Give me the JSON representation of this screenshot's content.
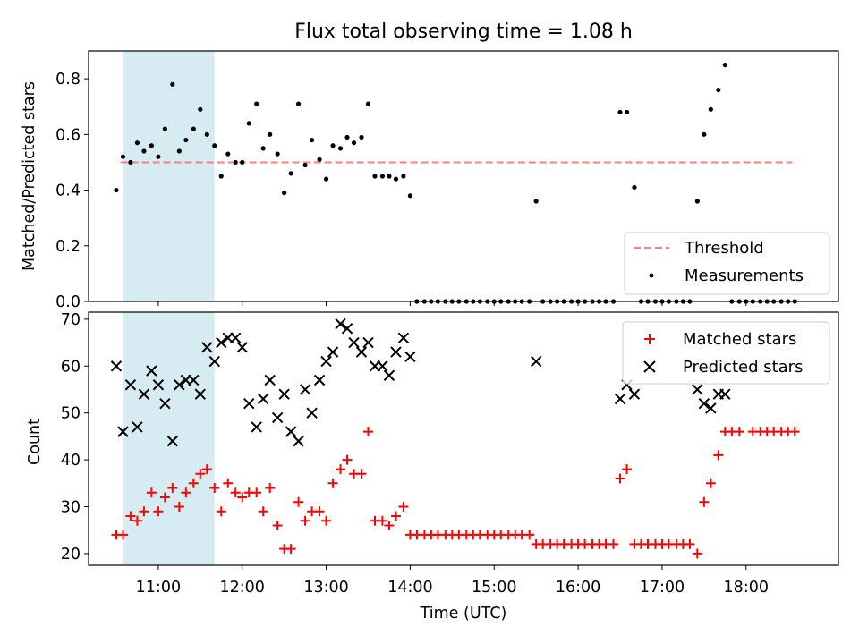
{
  "chart_data": {
    "type": "scatter",
    "title": "Flux total observing time = 1.08 h",
    "xlabel": "Time (UTC)",
    "x_tick_labels": [
      "11:00",
      "12:00",
      "13:00",
      "14:00",
      "15:00",
      "16:00",
      "17:00",
      "18:00"
    ],
    "x_range_hours": [
      10.17,
      19.1
    ],
    "highlight_span_hours": [
      10.58,
      11.67
    ],
    "colors": {
      "measurements": "#000000",
      "threshold": "#ff7f7f",
      "matched": "#ff0000",
      "predicted": "#000000",
      "highlight": "#add8e6"
    },
    "top": {
      "ylabel": "Matched/Predicted stars",
      "ylim": [
        0,
        0.9
      ],
      "y_tick_labels": [
        "0.0",
        "0.2",
        "0.4",
        "0.6",
        "0.8"
      ],
      "legend_position": "lower-right",
      "threshold": {
        "name": "Threshold",
        "x_range": [
          10.55,
          18.55
        ],
        "y": 0.5
      },
      "measurements": {
        "name": "Measurements",
        "points": [
          [
            10.5,
            0.4
          ],
          [
            10.58,
            0.52
          ],
          [
            10.67,
            0.5
          ],
          [
            10.75,
            0.57
          ],
          [
            10.83,
            0.54
          ],
          [
            10.92,
            0.56
          ],
          [
            11.0,
            0.52
          ],
          [
            11.08,
            0.62
          ],
          [
            11.17,
            0.78
          ],
          [
            11.25,
            0.54
          ],
          [
            11.33,
            0.58
          ],
          [
            11.42,
            0.62
          ],
          [
            11.5,
            0.69
          ],
          [
            11.58,
            0.6
          ],
          [
            11.67,
            0.56
          ],
          [
            11.75,
            0.45
          ],
          [
            11.83,
            0.53
          ],
          [
            11.92,
            0.5
          ],
          [
            12.0,
            0.5
          ],
          [
            12.08,
            0.64
          ],
          [
            12.17,
            0.71
          ],
          [
            12.25,
            0.55
          ],
          [
            12.33,
            0.6
          ],
          [
            12.42,
            0.53
          ],
          [
            12.5,
            0.39
          ],
          [
            12.58,
            0.46
          ],
          [
            12.67,
            0.71
          ],
          [
            12.75,
            0.49
          ],
          [
            12.83,
            0.58
          ],
          [
            12.92,
            0.51
          ],
          [
            13.0,
            0.44
          ],
          [
            13.08,
            0.56
          ],
          [
            13.17,
            0.55
          ],
          [
            13.25,
            0.59
          ],
          [
            13.33,
            0.57
          ],
          [
            13.42,
            0.59
          ],
          [
            13.5,
            0.71
          ],
          [
            13.58,
            0.45
          ],
          [
            13.67,
            0.45
          ],
          [
            13.75,
            0.45
          ],
          [
            13.83,
            0.44
          ],
          [
            13.92,
            0.45
          ],
          [
            14.0,
            0.38
          ],
          [
            14.08,
            0.0
          ],
          [
            14.17,
            0.0
          ],
          [
            14.25,
            0.0
          ],
          [
            14.33,
            0.0
          ],
          [
            14.42,
            0.0
          ],
          [
            14.5,
            0.0
          ],
          [
            14.58,
            0.0
          ],
          [
            14.67,
            0.0
          ],
          [
            14.75,
            0.0
          ],
          [
            14.83,
            0.0
          ],
          [
            14.92,
            0.0
          ],
          [
            15.0,
            0.0
          ],
          [
            15.08,
            0.0
          ],
          [
            15.17,
            0.0
          ],
          [
            15.25,
            0.0
          ],
          [
            15.33,
            0.0
          ],
          [
            15.42,
            0.0
          ],
          [
            15.5,
            0.36
          ],
          [
            15.58,
            0.0
          ],
          [
            15.67,
            0.0
          ],
          [
            15.75,
            0.0
          ],
          [
            15.83,
            0.0
          ],
          [
            15.92,
            0.0
          ],
          [
            16.0,
            0.0
          ],
          [
            16.08,
            0.0
          ],
          [
            16.17,
            0.0
          ],
          [
            16.25,
            0.0
          ],
          [
            16.33,
            0.0
          ],
          [
            16.42,
            0.0
          ],
          [
            16.5,
            0.68
          ],
          [
            16.58,
            0.68
          ],
          [
            16.67,
            0.41
          ],
          [
            16.75,
            0.0
          ],
          [
            16.83,
            0.0
          ],
          [
            16.92,
            0.0
          ],
          [
            17.0,
            0.0
          ],
          [
            17.08,
            0.0
          ],
          [
            17.17,
            0.0
          ],
          [
            17.25,
            0.0
          ],
          [
            17.33,
            0.0
          ],
          [
            17.42,
            0.36
          ],
          [
            17.5,
            0.6
          ],
          [
            17.58,
            0.69
          ],
          [
            17.67,
            0.76
          ],
          [
            17.75,
            0.85
          ],
          [
            17.83,
            0.0
          ],
          [
            17.92,
            0.0
          ],
          [
            18.0,
            0.0
          ],
          [
            18.08,
            0.0
          ],
          [
            18.17,
            0.0
          ],
          [
            18.25,
            0.0
          ],
          [
            18.33,
            0.0
          ],
          [
            18.42,
            0.0
          ],
          [
            18.5,
            0.0
          ],
          [
            18.58,
            0.0
          ]
        ]
      }
    },
    "bottom": {
      "ylabel": "Count",
      "ylim": [
        17.5,
        71.5
      ],
      "y_tick_labels": [
        "20",
        "30",
        "40",
        "50",
        "60",
        "70"
      ],
      "legend_position": "upper-right",
      "matched": {
        "name": "Matched stars",
        "points": [
          [
            10.5,
            24
          ],
          [
            10.58,
            24
          ],
          [
            10.67,
            28
          ],
          [
            10.75,
            27
          ],
          [
            10.83,
            29
          ],
          [
            10.92,
            33
          ],
          [
            11.0,
            29
          ],
          [
            11.08,
            32
          ],
          [
            11.17,
            34
          ],
          [
            11.25,
            30
          ],
          [
            11.33,
            33
          ],
          [
            11.42,
            35
          ],
          [
            11.5,
            37
          ],
          [
            11.58,
            38
          ],
          [
            11.67,
            34
          ],
          [
            11.75,
            29
          ],
          [
            11.83,
            35
          ],
          [
            11.92,
            33
          ],
          [
            12.0,
            32
          ],
          [
            12.08,
            33
          ],
          [
            12.17,
            33
          ],
          [
            12.25,
            29
          ],
          [
            12.33,
            34
          ],
          [
            12.42,
            26
          ],
          [
            12.5,
            21
          ],
          [
            12.58,
            21
          ],
          [
            12.67,
            31
          ],
          [
            12.75,
            27
          ],
          [
            12.83,
            29
          ],
          [
            12.92,
            29
          ],
          [
            13.0,
            27
          ],
          [
            13.08,
            35
          ],
          [
            13.17,
            38
          ],
          [
            13.25,
            40
          ],
          [
            13.33,
            37
          ],
          [
            13.42,
            37
          ],
          [
            13.5,
            46
          ],
          [
            13.58,
            27
          ],
          [
            13.67,
            27
          ],
          [
            13.75,
            26
          ],
          [
            13.83,
            28
          ],
          [
            13.92,
            30
          ],
          [
            14.0,
            24
          ],
          [
            14.08,
            24
          ],
          [
            14.17,
            24
          ],
          [
            14.25,
            24
          ],
          [
            14.33,
            24
          ],
          [
            14.42,
            24
          ],
          [
            14.5,
            24
          ],
          [
            14.58,
            24
          ],
          [
            14.67,
            24
          ],
          [
            14.75,
            24
          ],
          [
            14.83,
            24
          ],
          [
            14.92,
            24
          ],
          [
            15.0,
            24
          ],
          [
            15.08,
            24
          ],
          [
            15.17,
            24
          ],
          [
            15.25,
            24
          ],
          [
            15.33,
            24
          ],
          [
            15.42,
            24
          ],
          [
            15.5,
            22
          ],
          [
            15.58,
            22
          ],
          [
            15.67,
            22
          ],
          [
            15.75,
            22
          ],
          [
            15.83,
            22
          ],
          [
            15.92,
            22
          ],
          [
            16.0,
            22
          ],
          [
            16.08,
            22
          ],
          [
            16.17,
            22
          ],
          [
            16.25,
            22
          ],
          [
            16.33,
            22
          ],
          [
            16.42,
            22
          ],
          [
            16.5,
            36
          ],
          [
            16.58,
            38
          ],
          [
            16.67,
            22
          ],
          [
            16.75,
            22
          ],
          [
            16.83,
            22
          ],
          [
            16.92,
            22
          ],
          [
            17.0,
            22
          ],
          [
            17.08,
            22
          ],
          [
            17.17,
            22
          ],
          [
            17.25,
            22
          ],
          [
            17.33,
            22
          ],
          [
            17.42,
            20
          ],
          [
            17.5,
            31
          ],
          [
            17.58,
            35
          ],
          [
            17.67,
            41
          ],
          [
            17.75,
            46
          ],
          [
            17.83,
            46
          ],
          [
            17.92,
            46
          ],
          [
            18.08,
            46
          ],
          [
            18.17,
            46
          ],
          [
            18.25,
            46
          ],
          [
            18.33,
            46
          ],
          [
            18.42,
            46
          ],
          [
            18.5,
            46
          ],
          [
            18.58,
            46
          ]
        ]
      },
      "predicted": {
        "name": "Predicted stars",
        "points": [
          [
            10.5,
            60
          ],
          [
            10.58,
            46
          ],
          [
            10.67,
            56
          ],
          [
            10.75,
            47
          ],
          [
            10.83,
            54
          ],
          [
            10.92,
            59
          ],
          [
            11.0,
            56
          ],
          [
            11.08,
            52
          ],
          [
            11.17,
            44
          ],
          [
            11.25,
            56
          ],
          [
            11.33,
            57
          ],
          [
            11.42,
            57
          ],
          [
            11.5,
            54
          ],
          [
            11.58,
            64
          ],
          [
            11.67,
            61
          ],
          [
            11.75,
            65
          ],
          [
            11.83,
            66
          ],
          [
            11.92,
            66
          ],
          [
            12.0,
            64
          ],
          [
            12.08,
            52
          ],
          [
            12.17,
            47
          ],
          [
            12.25,
            53
          ],
          [
            12.33,
            57
          ],
          [
            12.42,
            49
          ],
          [
            12.5,
            54
          ],
          [
            12.58,
            46
          ],
          [
            12.67,
            44
          ],
          [
            12.75,
            55
          ],
          [
            12.83,
            50
          ],
          [
            12.92,
            57
          ],
          [
            13.0,
            61
          ],
          [
            13.08,
            63
          ],
          [
            13.17,
            69
          ],
          [
            13.25,
            68
          ],
          [
            13.33,
            65
          ],
          [
            13.42,
            63
          ],
          [
            13.5,
            65
          ],
          [
            13.58,
            60
          ],
          [
            13.67,
            60
          ],
          [
            13.75,
            58
          ],
          [
            13.83,
            63
          ],
          [
            13.92,
            66
          ],
          [
            14.0,
            62
          ],
          [
            15.5,
            61
          ],
          [
            16.5,
            53
          ],
          [
            16.58,
            56
          ],
          [
            16.67,
            54
          ],
          [
            17.42,
            55
          ],
          [
            17.5,
            52
          ],
          [
            17.58,
            51
          ],
          [
            17.67,
            54
          ],
          [
            17.75,
            54
          ]
        ]
      }
    }
  }
}
